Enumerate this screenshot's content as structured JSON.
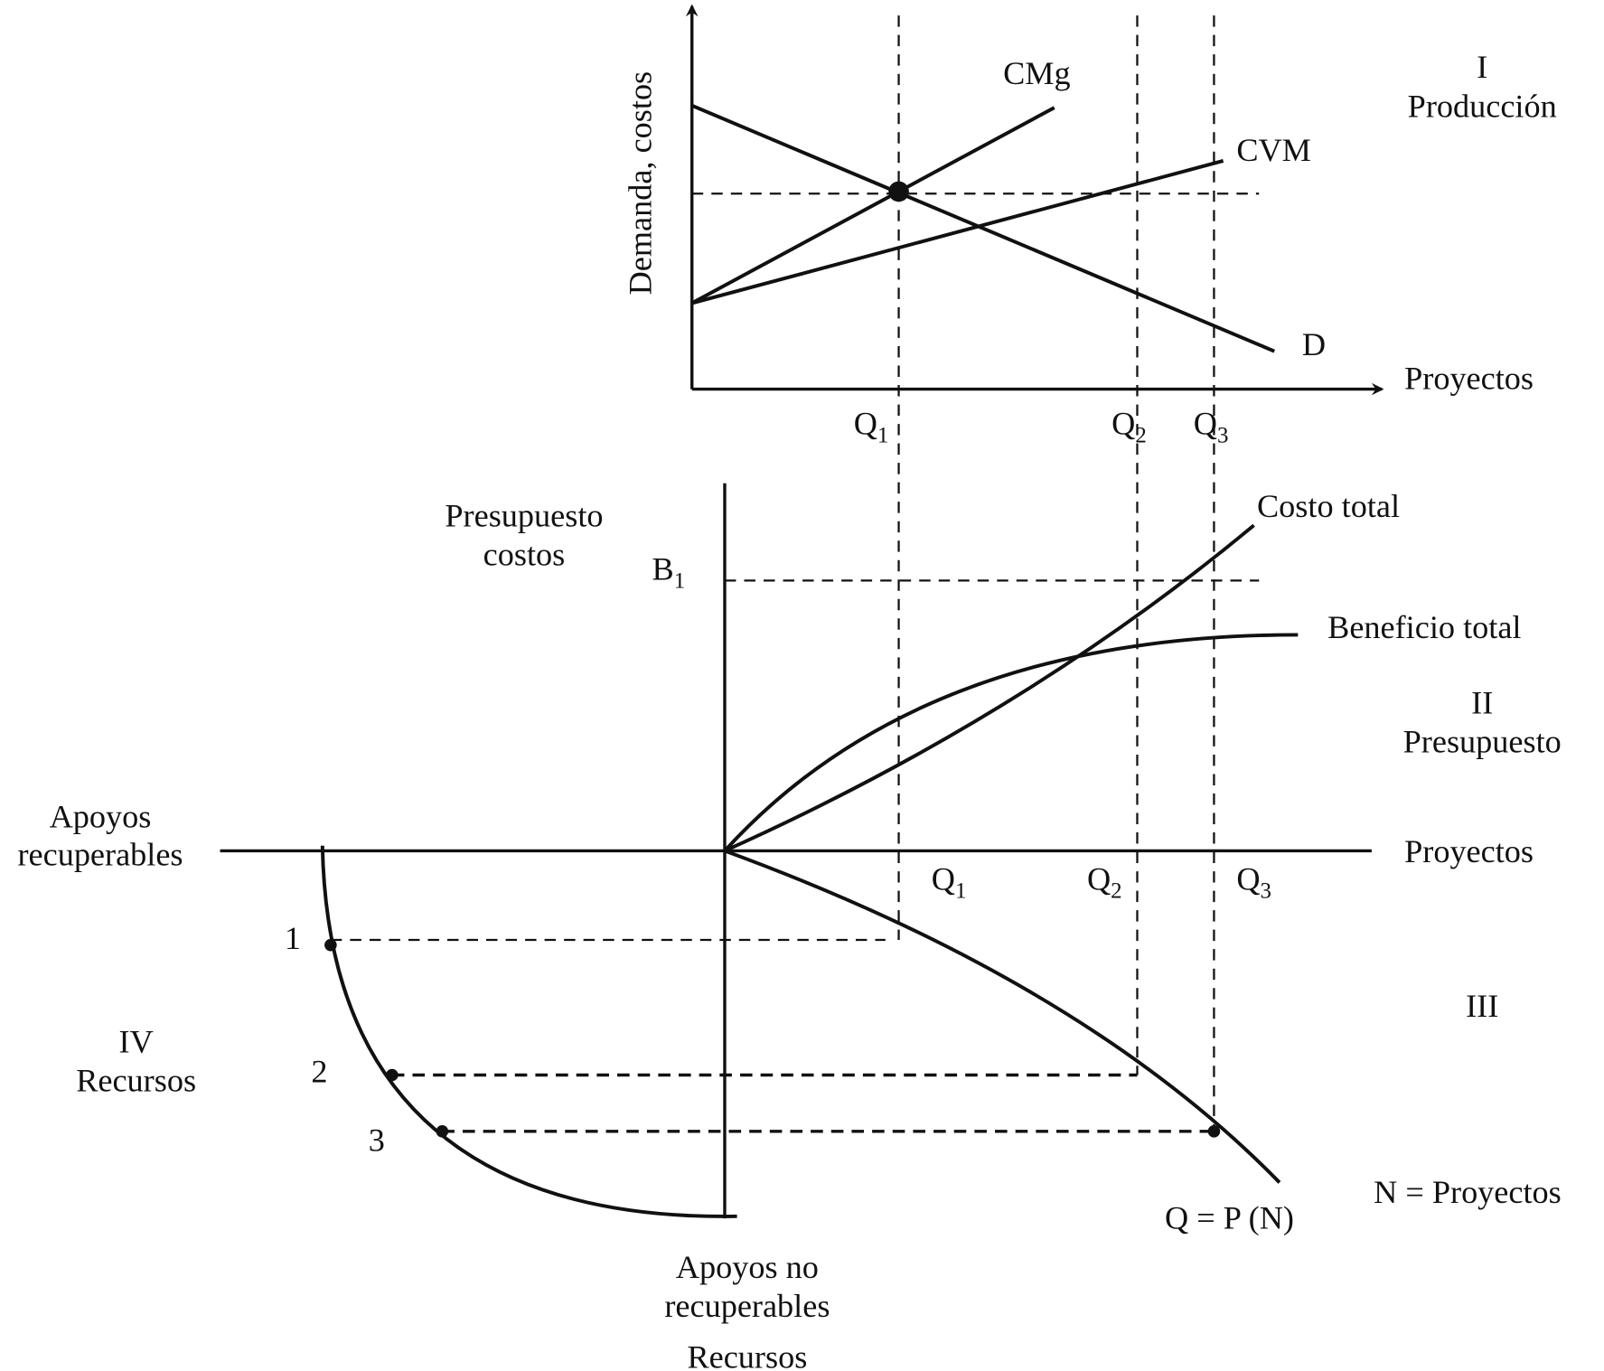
{
  "quadrant_I": {
    "numeral": "I",
    "name": "Producción",
    "y_axis_label": "Demanda, costos",
    "x_axis_label": "Proyectos",
    "curves": {
      "cmg": "CMg",
      "cvm": "CVM",
      "d": "D"
    },
    "q_labels": [
      {
        "base": "Q",
        "sub": "1"
      },
      {
        "base": "Q",
        "sub": "2"
      },
      {
        "base": "Q",
        "sub": "3"
      }
    ]
  },
  "quadrant_II": {
    "numeral": "II",
    "name": "Presupuesto",
    "y_axis_label_1": "Presupuesto",
    "y_axis_label_2": "costos",
    "b1": {
      "base": "B",
      "sub": "1"
    },
    "x_axis_label": "Proyectos",
    "curves": {
      "costo_total": "Costo total",
      "beneficio_total": "Beneficio total"
    },
    "q_labels": [
      {
        "base": "Q",
        "sub": "1"
      },
      {
        "base": "Q",
        "sub": "2"
      },
      {
        "base": "Q",
        "sub": "3"
      }
    ]
  },
  "quadrant_III": {
    "numeral": "III",
    "curve": "Q = P (N)",
    "note": "N = Proyectos"
  },
  "quadrant_IV": {
    "numeral": "IV",
    "name": "Recursos",
    "points": [
      "1",
      "2",
      "3"
    ]
  },
  "axes": {
    "left_1": "Apoyos",
    "left_2": "recuperables",
    "bottom_1": "Apoyos no",
    "bottom_2": "recuperables",
    "bottom_3": "Recursos"
  },
  "colors": {
    "ink": "#111111",
    "background": "#ffffff"
  }
}
